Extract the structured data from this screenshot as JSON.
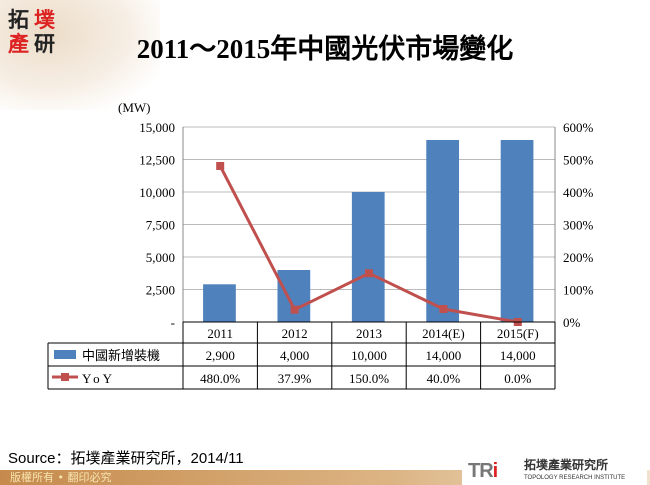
{
  "logo": {
    "text": "拓墣產研",
    "chars": [
      "拓",
      "墣",
      "產",
      "研"
    ]
  },
  "title": "2011～2015年中國光伏市場變化",
  "chart_data": {
    "type": "bar+line",
    "title": "2011～2015年中國光伏市場變化",
    "unit_label": "(MW)",
    "categories": [
      "2011",
      "2012",
      "2013",
      "2014(E)",
      "2015(F)"
    ],
    "left_axis": {
      "ylim": [
        0,
        15000
      ],
      "ticks": [
        "15,000",
        "12,500",
        "10,000",
        "7,500",
        "5,000",
        "2,500",
        "-"
      ]
    },
    "right_axis": {
      "ylim": [
        0,
        600
      ],
      "ticks": [
        "600%",
        "500%",
        "400%",
        "300%",
        "200%",
        "100%",
        "0%"
      ]
    },
    "grid": true,
    "series": [
      {
        "name": "中國新增裝機",
        "type": "bar",
        "axis": "left",
        "color": "#4f81bd",
        "values": [
          2900,
          4000,
          10000,
          14000,
          14000
        ],
        "labels": [
          "2,900",
          "4,000",
          "10,000",
          "14,000",
          "14,000"
        ]
      },
      {
        "name": "YoY",
        "type": "line",
        "axis": "right",
        "color": "#c0504d",
        "values": [
          480,
          37.9,
          150,
          40,
          0
        ],
        "labels": [
          "480.0%",
          "37.9%",
          "150.0%",
          "40.0%",
          "0.0%"
        ]
      }
    ]
  },
  "source": "Source：拓墣產業研究所，2014/11",
  "footer": "版權所有 • 翻印必究",
  "brand": {
    "mark": "TR",
    "mark_i": "i",
    "cn": "拓墣產業研究所",
    "en": "TOPOLOGY RESEARCH INSTITUTE"
  }
}
